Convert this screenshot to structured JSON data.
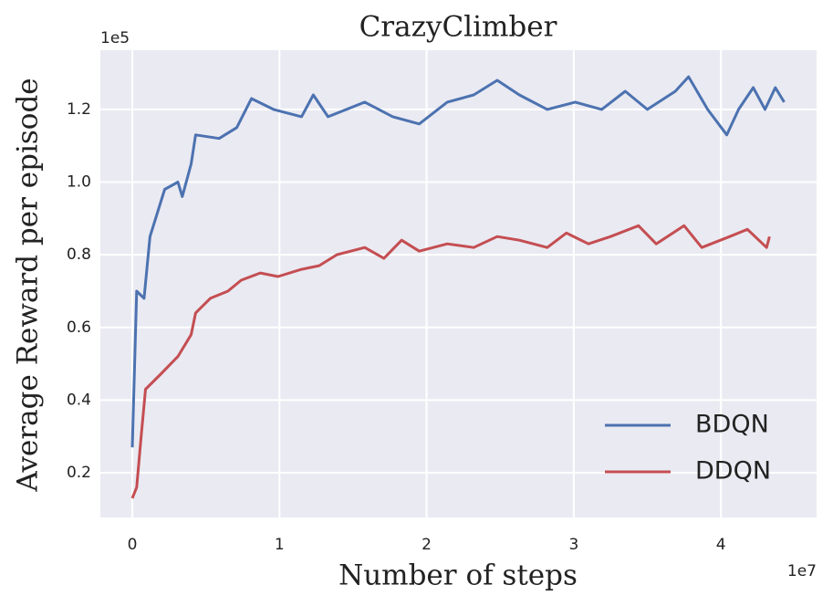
{
  "chart_data": {
    "type": "line",
    "title": "CrazyClimber",
    "x_label": "Number of steps",
    "y_label": "Average Reward per episode",
    "x_offset_label": "1e7",
    "y_offset_label": "1e5",
    "xlim": [
      -0.217,
      4.65
    ],
    "ylim": [
      0.077,
      1.363
    ],
    "xticks": [
      0,
      1,
      2,
      3,
      4
    ],
    "yticks": [
      0.2,
      0.4,
      0.6,
      0.8,
      {
        "value": 1.0,
        "label": "1.0"
      },
      1.2
    ],
    "grid": true,
    "legend": "lower right",
    "series": [
      {
        "name": "BDQN",
        "color": "#4c72b0",
        "x": [
          0,
          0.03,
          0.08,
          0.12,
          0.22,
          0.31,
          0.34,
          0.4,
          0.43,
          0.59,
          0.71,
          0.81,
          0.96,
          1.15,
          1.23,
          1.33,
          1.58,
          1.77,
          1.95,
          2.14,
          2.32,
          2.48,
          2.63,
          2.82,
          3.01,
          3.19,
          3.35,
          3.5,
          3.69,
          3.78,
          3.91,
          4.04,
          4.12,
          4.22,
          4.3,
          4.37,
          4.43
        ],
        "values": [
          0.27,
          0.7,
          0.68,
          0.85,
          0.98,
          1.0,
          0.96,
          1.05,
          1.13,
          1.12,
          1.15,
          1.23,
          1.2,
          1.18,
          1.24,
          1.18,
          1.22,
          1.18,
          1.16,
          1.22,
          1.24,
          1.28,
          1.24,
          1.2,
          1.22,
          1.2,
          1.25,
          1.2,
          1.25,
          1.29,
          1.2,
          1.13,
          1.2,
          1.26,
          1.2,
          1.26,
          1.22
        ]
      },
      {
        "name": "DDQN",
        "color": "#c44e52",
        "x": [
          0,
          0.03,
          0.06,
          0.09,
          0.19,
          0.31,
          0.4,
          0.43,
          0.53,
          0.65,
          0.74,
          0.87,
          0.99,
          1.15,
          1.27,
          1.39,
          1.58,
          1.71,
          1.83,
          1.95,
          2.14,
          2.32,
          2.48,
          2.63,
          2.82,
          2.95,
          3.1,
          3.25,
          3.44,
          3.56,
          3.75,
          3.87,
          4.06,
          4.18,
          4.31,
          4.33
        ],
        "values": [
          0.13,
          0.16,
          0.3,
          0.43,
          0.47,
          0.52,
          0.58,
          0.64,
          0.68,
          0.7,
          0.73,
          0.75,
          0.74,
          0.76,
          0.77,
          0.8,
          0.82,
          0.79,
          0.84,
          0.81,
          0.83,
          0.82,
          0.85,
          0.84,
          0.82,
          0.86,
          0.83,
          0.85,
          0.88,
          0.83,
          0.88,
          0.82,
          0.85,
          0.87,
          0.82,
          0.85
        ]
      }
    ]
  }
}
